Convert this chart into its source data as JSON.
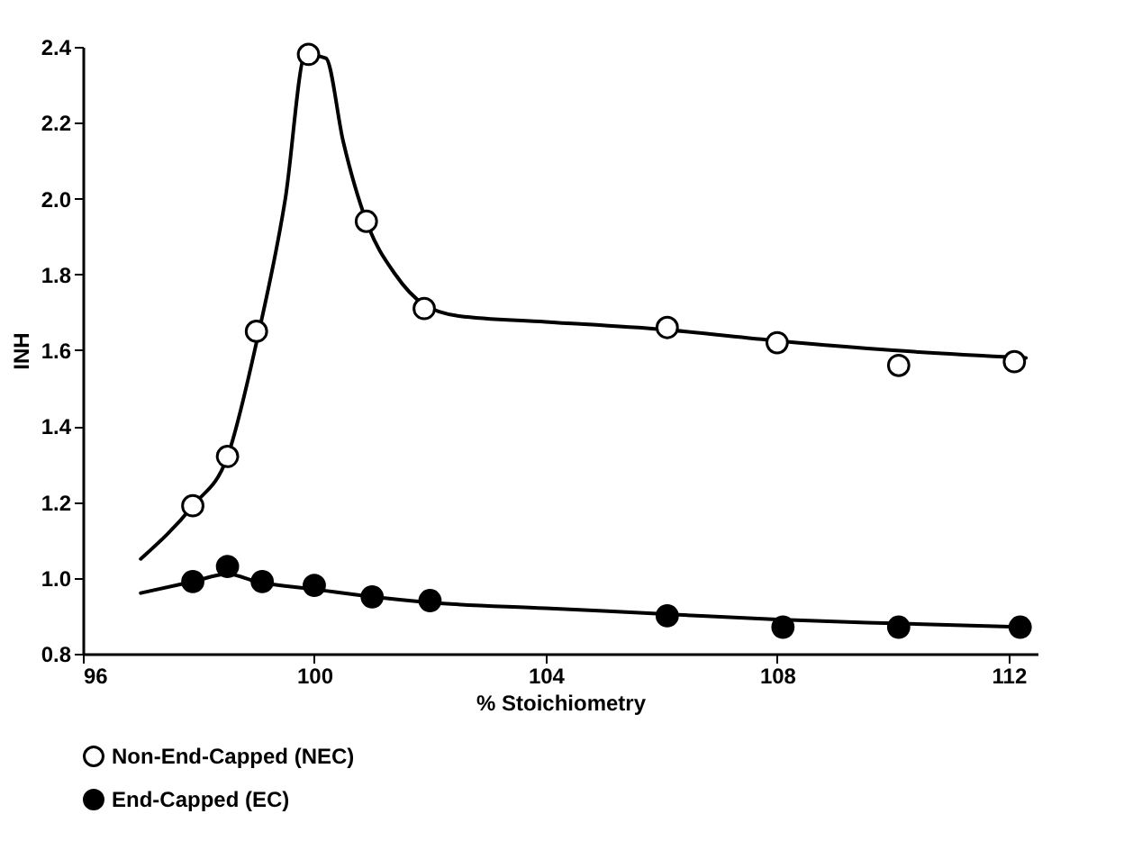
{
  "chart_data": {
    "type": "scatter",
    "xlabel": "% Stoichiometry",
    "ylabel": "INH",
    "xlim": [
      96,
      112.5
    ],
    "xticks": [
      96,
      100,
      104,
      108,
      112
    ],
    "ylim": [
      0.8,
      2.4
    ],
    "yticks": [
      0.8,
      {
        "value": 1,
        "label": "1.0"
      },
      1.2,
      1.4,
      1.6,
      1.8,
      {
        "value": 2,
        "label": "2.0"
      },
      2.2,
      2.4
    ],
    "grid": false,
    "legend": "bottom",
    "series": [
      {
        "name": "Non-End-Capped (NEC)",
        "color": "#ffffff",
        "marker": "circle",
        "x": [
          97.9,
          98.5,
          99.0,
          99.9,
          100.9,
          101.9,
          106.1,
          108.0,
          110.1,
          112.1
        ],
        "values": [
          1.19,
          1.32,
          1.65,
          2.38,
          1.94,
          1.71,
          1.66,
          1.62,
          1.56,
          1.57
        ]
      },
      {
        "name": "End-Capped (EC)",
        "color": "#000000",
        "marker": "circle",
        "x": [
          97.9,
          98.5,
          99.1,
          100.0,
          101.0,
          102.0,
          106.1,
          108.1,
          110.1,
          112.2
        ],
        "values": [
          0.99,
          1.03,
          0.99,
          0.98,
          0.95,
          0.94,
          0.9,
          0.87,
          0.87,
          0.87
        ]
      },
      {
        "type": "line",
        "color": "#000000",
        "marker": "none",
        "line_style": "solid",
        "x": [
          97.0,
          97.9,
          98.5,
          99.0,
          99.5,
          99.85,
          100.2,
          100.5,
          100.9,
          101.4,
          101.9,
          102.5,
          104,
          106,
          108,
          110,
          112.3
        ],
        "values": [
          1.05,
          1.19,
          1.32,
          1.62,
          2.0,
          2.38,
          2.37,
          2.15,
          1.94,
          1.8,
          1.72,
          1.69,
          1.675,
          1.655,
          1.625,
          1.6,
          1.58
        ]
      },
      {
        "type": "line",
        "color": "#000000",
        "marker": "none",
        "line_style": "solid",
        "x": [
          97.0,
          97.9,
          98.5,
          99.0,
          100,
          101,
          102,
          104,
          106,
          108,
          110,
          112.3
        ],
        "values": [
          0.96,
          0.99,
          1.01,
          0.99,
          0.97,
          0.95,
          0.935,
          0.92,
          0.905,
          0.89,
          0.88,
          0.87
        ]
      }
    ]
  }
}
